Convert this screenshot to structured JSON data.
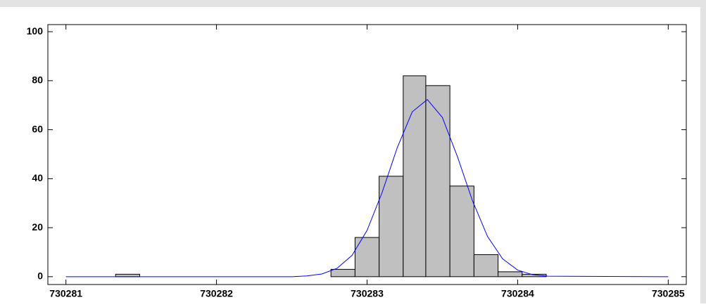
{
  "chart_data": {
    "type": "histogram",
    "bins": [
      730281.33,
      730281.49,
      730281.65,
      730281.8,
      730281.96,
      730282.12,
      730282.28,
      730282.44,
      730282.6,
      730282.76,
      730282.92,
      730283.08,
      730283.24,
      730283.39,
      730283.55,
      730283.71,
      730283.87,
      730284.03,
      730284.19
    ],
    "values": [
      1,
      0,
      0,
      0,
      0,
      0,
      0,
      0,
      0,
      3,
      16,
      41,
      82,
      78,
      37,
      9,
      2,
      1
    ],
    "color": "#c0c0c0",
    "curve": {
      "color": "#0000ff",
      "x": [
        730281,
        730282.5,
        730282.6,
        730282.7,
        730282.8,
        730282.9,
        730283.0,
        730283.1,
        730283.2,
        730283.3,
        730283.4,
        730283.5,
        730283.6,
        730283.7,
        730283.8,
        730283.9,
        730284.0,
        730284.1,
        730284.2,
        730285
      ],
      "values": [
        0,
        0,
        0.3,
        1.1,
        3.4,
        8.7,
        18.9,
        34.4,
        52.6,
        67.3,
        72.3,
        65.0,
        49.0,
        31.0,
        16.4,
        7.3,
        2.7,
        0.8,
        0.2,
        0
      ]
    },
    "xlim": [
      730280.88,
      730285.12
    ],
    "xticks": [
      730281,
      730282,
      730283,
      730284,
      730285
    ],
    "ylim": [
      -3.2,
      102.9
    ],
    "yticks": [
      0,
      20,
      40,
      60,
      80,
      100
    ]
  }
}
